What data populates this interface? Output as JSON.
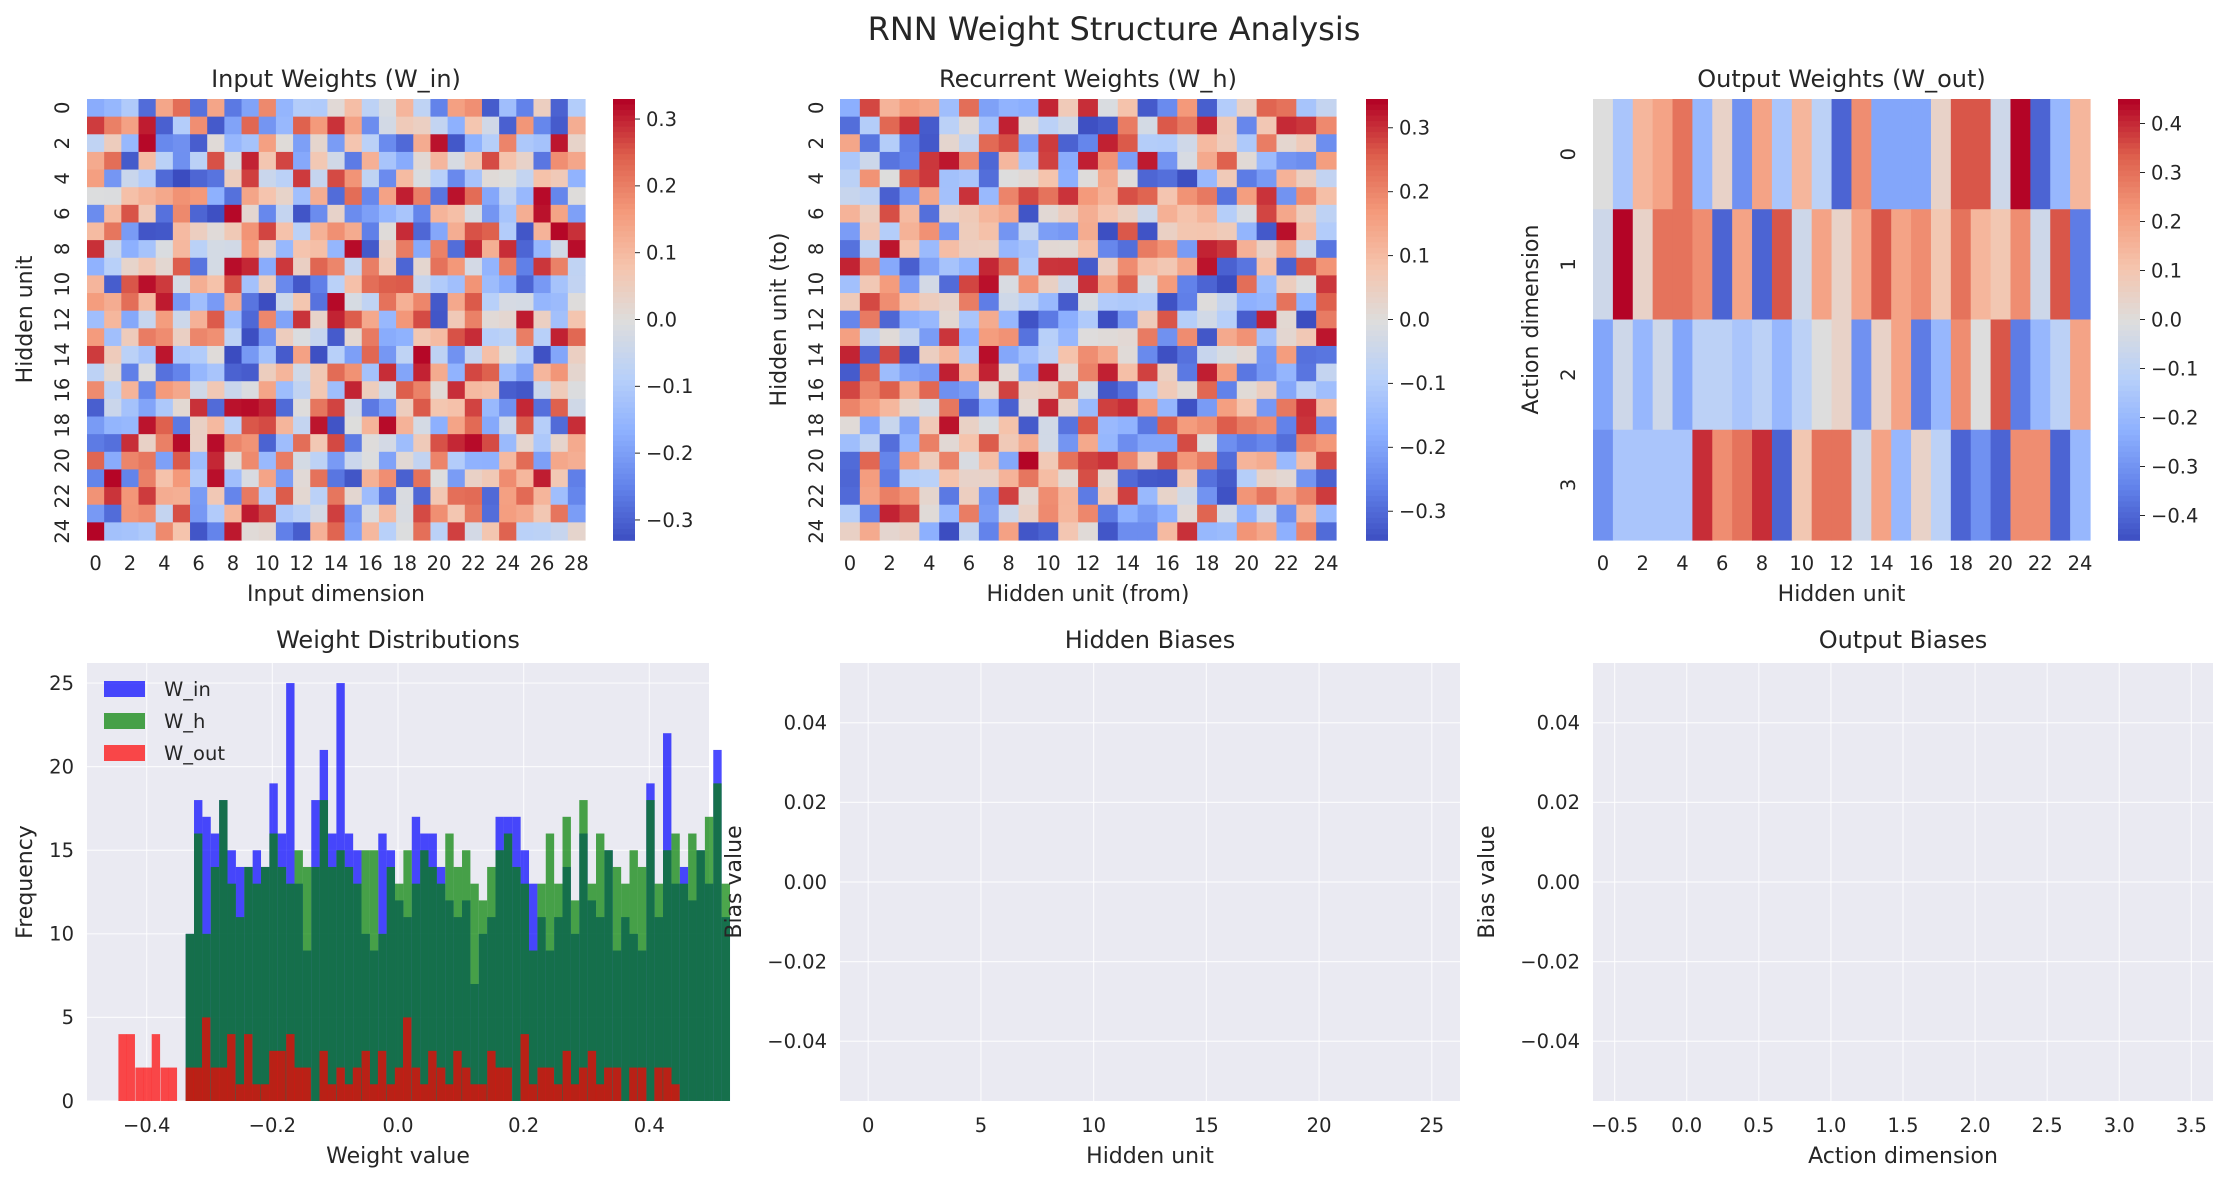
{
  "figure_title": "RNN Weight Structure Analysis",
  "chart_data": [
    {
      "type": "heatmap",
      "title": "Input Weights (W_in)",
      "xlabel": "Input dimension",
      "ylabel": "Hidden unit",
      "rows": 25,
      "cols": 29,
      "xticks": [
        "0",
        "2",
        "4",
        "6",
        "8",
        "10",
        "12",
        "14",
        "16",
        "18",
        "20",
        "22",
        "24",
        "26",
        "28"
      ],
      "yticks": [
        "0",
        "2",
        "4",
        "6",
        "8",
        "10",
        "12",
        "14",
        "16",
        "18",
        "20",
        "22",
        "24"
      ],
      "colorbar": {
        "vmin": -0.33,
        "vmax": 0.33,
        "ticks": [
          -0.3,
          -0.2,
          -0.1,
          0.0,
          0.1,
          0.2,
          0.3
        ],
        "labels": [
          "−0.3",
          "−0.2",
          "−0.1",
          "0.0",
          "0.1",
          "0.2",
          "0.3"
        ]
      },
      "colormap": "coolwarm",
      "seed": 11
    },
    {
      "type": "heatmap",
      "title": "Recurrent Weights (W_h)",
      "xlabel": "Hidden unit (from)",
      "ylabel": "Hidden unit (to)",
      "rows": 25,
      "cols": 25,
      "xticks": [
        "0",
        "2",
        "4",
        "6",
        "8",
        "10",
        "12",
        "14",
        "16",
        "18",
        "20",
        "22",
        "24"
      ],
      "yticks": [
        "0",
        "2",
        "4",
        "6",
        "8",
        "10",
        "12",
        "14",
        "16",
        "18",
        "20",
        "22",
        "24"
      ],
      "colorbar": {
        "vmin": -0.345,
        "vmax": 0.345,
        "ticks": [
          -0.3,
          -0.2,
          -0.1,
          0.0,
          0.1,
          0.2,
          0.3
        ],
        "labels": [
          "−0.3",
          "−0.2",
          "−0.1",
          "0.0",
          "0.1",
          "0.2",
          "0.3"
        ]
      },
      "colormap": "coolwarm",
      "seed": 29
    },
    {
      "type": "heatmap",
      "title": "Output Weights (W_out)",
      "xlabel": "Hidden unit",
      "ylabel": "Action dimension",
      "rows": 4,
      "cols": 25,
      "xticks": [
        "0",
        "2",
        "4",
        "6",
        "8",
        "10",
        "12",
        "14",
        "16",
        "18",
        "20",
        "22",
        "24"
      ],
      "yticks": [
        "0",
        "1",
        "2",
        "3"
      ],
      "colorbar": {
        "vmin": -0.45,
        "vmax": 0.45,
        "ticks": [
          -0.4,
          -0.3,
          -0.2,
          -0.1,
          0.0,
          0.1,
          0.2,
          0.3,
          0.4
        ],
        "labels": [
          "−0.4",
          "−0.3",
          "−0.2",
          "−0.1",
          "0.0",
          "0.1",
          "0.2",
          "0.3",
          "0.4"
        ]
      },
      "colormap": "coolwarm",
      "values": [
        [
          0.0,
          -0.15,
          0.15,
          0.2,
          0.3,
          -0.2,
          0.05,
          -0.3,
          0.2,
          -0.15,
          0.15,
          -0.1,
          -0.4,
          0.25,
          -0.25,
          -0.25,
          -0.25,
          0.05,
          0.35,
          0.35,
          -0.05,
          0.45,
          -0.4,
          -0.2,
          0.15
        ],
        [
          -0.05,
          0.45,
          0.05,
          0.3,
          0.3,
          0.25,
          -0.4,
          0.2,
          -0.4,
          0.35,
          -0.05,
          0.2,
          0.05,
          0.2,
          0.35,
          0.2,
          0.25,
          0.1,
          0.3,
          0.15,
          0.1,
          0.25,
          -0.05,
          0.35,
          -0.35
        ],
        [
          -0.25,
          -0.05,
          -0.2,
          -0.05,
          -0.25,
          -0.1,
          -0.1,
          -0.15,
          -0.1,
          -0.2,
          -0.1,
          0.0,
          0.05,
          -0.3,
          0.05,
          0.2,
          -0.35,
          -0.2,
          0.25,
          0.0,
          0.35,
          -0.35,
          -0.2,
          -0.1,
          0.2
        ],
        [
          -0.3,
          -0.15,
          -0.15,
          -0.15,
          -0.15,
          0.4,
          0.25,
          0.3,
          0.4,
          -0.4,
          0.1,
          0.3,
          0.3,
          -0.05,
          0.2,
          -0.2,
          0.05,
          -0.1,
          -0.4,
          -0.3,
          -0.4,
          0.25,
          0.25,
          -0.4,
          -0.2
        ]
      ]
    },
    {
      "type": "histogram",
      "title": "Weight Distributions",
      "xlabel": "Weight value",
      "ylabel": "Frequency",
      "xlim": [
        -0.495,
        0.495
      ],
      "ylim": [
        0,
        26.2
      ],
      "xticks": [
        -0.4,
        -0.2,
        0.0,
        0.2,
        0.4
      ],
      "xtick_labels": [
        "−0.4",
        "−0.2",
        "0.0",
        "0.2",
        "0.4"
      ],
      "yticks": [
        0,
        5,
        10,
        15,
        20,
        25
      ],
      "bin_start": -0.338,
      "bin_width": 0.01333,
      "series": [
        {
          "name": "W_in",
          "color": "#0000ff",
          "opacity": 0.7,
          "counts": [
            10,
            18,
            17,
            16,
            18,
            15,
            14,
            14,
            15,
            14,
            19,
            16,
            25,
            13,
            9,
            18,
            21,
            16,
            25,
            16,
            15,
            10,
            9,
            16,
            15,
            12,
            11,
            17,
            16,
            16,
            14,
            12,
            11,
            12,
            7,
            10,
            11,
            17,
            17,
            17,
            15,
            13,
            11,
            9,
            11,
            14,
            10,
            16,
            12,
            11,
            15,
            9,
            11,
            10,
            9,
            19,
            11,
            22,
            13,
            14,
            12,
            15,
            13,
            21,
            11
          ]
        },
        {
          "name": "W_h",
          "color": "#008000",
          "opacity": 0.7,
          "counts": [
            10,
            16,
            10,
            14,
            18,
            13,
            11,
            14,
            13,
            14,
            16,
            14,
            13,
            15,
            14,
            14,
            18,
            14,
            15,
            14,
            13,
            15,
            15,
            10,
            14,
            13,
            15,
            13,
            15,
            14,
            13,
            16,
            14,
            15,
            13,
            12,
            14,
            15,
            16,
            14,
            13,
            9,
            13,
            16,
            13,
            17,
            12,
            18,
            13,
            16,
            15,
            14,
            13,
            15,
            14,
            18,
            13,
            15,
            16,
            13,
            16,
            15,
            17,
            19,
            13
          ]
        },
        {
          "name": "W_out",
          "color": "#ff0000",
          "opacity": 0.7,
          "bins": [
            [
              -0.445,
              4
            ],
            [
              -0.432,
              4
            ],
            [
              -0.418,
              2
            ],
            [
              -0.405,
              2
            ],
            [
              -0.392,
              4
            ],
            [
              -0.378,
              2
            ],
            [
              -0.365,
              2
            ],
            [
              -0.352,
              0
            ],
            [
              -0.338,
              2
            ],
            [
              -0.325,
              2
            ],
            [
              -0.312,
              5
            ],
            [
              -0.298,
              2
            ],
            [
              -0.285,
              2
            ],
            [
              -0.272,
              4
            ],
            [
              -0.258,
              1
            ],
            [
              -0.245,
              4
            ],
            [
              -0.232,
              1
            ],
            [
              -0.218,
              1
            ],
            [
              -0.205,
              3
            ],
            [
              -0.192,
              3
            ],
            [
              -0.178,
              4
            ],
            [
              -0.165,
              2
            ],
            [
              -0.152,
              2
            ],
            [
              -0.138,
              0
            ],
            [
              -0.125,
              3
            ],
            [
              -0.112,
              1
            ],
            [
              -0.098,
              2
            ],
            [
              -0.085,
              1
            ],
            [
              -0.072,
              2
            ],
            [
              -0.058,
              3
            ],
            [
              -0.045,
              1
            ],
            [
              -0.032,
              3
            ],
            [
              -0.018,
              1
            ],
            [
              -0.005,
              2
            ],
            [
              0.008,
              5
            ],
            [
              0.022,
              2
            ],
            [
              0.035,
              1
            ],
            [
              0.048,
              3
            ],
            [
              0.062,
              2
            ],
            [
              0.075,
              1
            ],
            [
              0.088,
              3
            ],
            [
              0.102,
              2
            ],
            [
              0.115,
              1
            ],
            [
              0.128,
              1
            ],
            [
              0.142,
              3
            ],
            [
              0.155,
              2
            ],
            [
              0.168,
              2
            ],
            [
              0.182,
              0
            ],
            [
              0.195,
              4
            ],
            [
              0.208,
              1
            ],
            [
              0.222,
              2
            ],
            [
              0.235,
              2
            ],
            [
              0.248,
              1
            ],
            [
              0.262,
              3
            ],
            [
              0.275,
              1
            ],
            [
              0.288,
              2
            ],
            [
              0.302,
              3
            ],
            [
              0.315,
              1
            ],
            [
              0.328,
              2
            ],
            [
              0.342,
              2
            ],
            [
              0.355,
              0
            ],
            [
              0.368,
              2
            ],
            [
              0.382,
              2
            ],
            [
              0.395,
              0
            ],
            [
              0.408,
              2
            ],
            [
              0.422,
              2
            ],
            [
              0.435,
              1
            ]
          ]
        }
      ],
      "legend": "top-left",
      "grid": true
    },
    {
      "type": "scatter",
      "title": "Hidden Biases",
      "xlabel": "Hidden unit",
      "ylabel": "Bias value",
      "xlim": [
        -1.25,
        26.25
      ],
      "ylim": [
        -0.055,
        0.055
      ],
      "xticks": [
        0,
        5,
        10,
        15,
        20,
        25
      ],
      "xtick_labels": [
        "0",
        "5",
        "10",
        "15",
        "20",
        "25"
      ],
      "yticks": [
        -0.04,
        -0.02,
        0.0,
        0.02,
        0.04
      ],
      "ytick_labels": [
        "−0.04",
        "−0.02",
        "0.00",
        "0.02",
        "0.04"
      ],
      "grid": true
    },
    {
      "type": "scatter",
      "title": "Output Biases",
      "xlabel": "Action dimension",
      "ylabel": "Bias value",
      "xlim": [
        -0.65,
        3.65
      ],
      "ylim": [
        -0.055,
        0.055
      ],
      "xticks": [
        -0.5,
        0.0,
        0.5,
        1.0,
        1.5,
        2.0,
        2.5,
        3.0,
        3.5
      ],
      "xtick_labels": [
        "−0.5",
        "0.0",
        "0.5",
        "1.0",
        "1.5",
        "2.0",
        "2.5",
        "3.0",
        "3.5"
      ],
      "yticks": [
        -0.04,
        -0.02,
        0.0,
        0.02,
        0.04
      ],
      "ytick_labels": [
        "−0.04",
        "−0.02",
        "0.00",
        "0.02",
        "0.04"
      ],
      "grid": true
    }
  ]
}
